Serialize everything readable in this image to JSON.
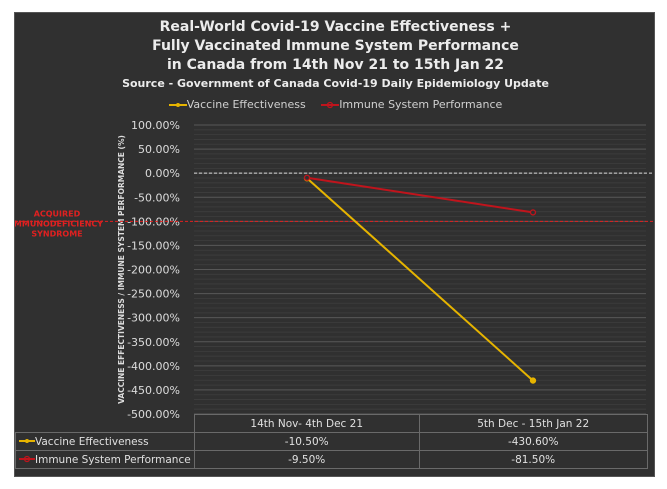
{
  "chart_data": {
    "type": "line",
    "title_lines": [
      "Real-World Covid-19 Vaccine Effectiveness +",
      "Fully Vaccinated Immune System Performance",
      "in Canada from 14th Nov 21 to 15th Jan 22"
    ],
    "subtitle": "Source - Government of Canada Covid-19 Daily Epidemiology Update",
    "ylabel": "VACCINE EFFECTIVENESS / IMMUNE SYSTEM PERFORMANCE (%)",
    "categories": [
      "14th Nov- 4th Dec 21",
      "5th Dec - 15th Jan 22"
    ],
    "ylim": [
      -500,
      100
    ],
    "yticks": [
      100,
      50,
      0,
      -50,
      -100,
      -150,
      -200,
      -250,
      -300,
      -350,
      -400,
      -450,
      -500
    ],
    "ytick_labels": [
      "100.00%",
      "50.00%",
      "0.00%",
      "-50.00%",
      "-100.00%",
      "-150.00%",
      "-200.00%",
      "-250.00%",
      "-300.00%",
      "-350.00%",
      "-400.00%",
      "-450.00%",
      "-500.00%"
    ],
    "series": [
      {
        "name": "Vaccine Effectiveness",
        "values": [
          -10.5,
          -430.6
        ],
        "labels": [
          "-10.50%",
          "-430.60%"
        ],
        "color": "#e6b400"
      },
      {
        "name": "Immune System Performance",
        "values": [
          -9.5,
          -81.5
        ],
        "labels": [
          "-9.50%",
          "-81.50%"
        ],
        "color": "#c0141c"
      }
    ],
    "reference_lines": [
      {
        "value": 0,
        "style": "dashed",
        "color": "#d8d8d8"
      },
      {
        "value": -100,
        "style": "dashed",
        "color": "#e02020",
        "annotation": [
          "ACQUIRED",
          "IMMUNODEFICIENCY",
          "SYNDROME"
        ]
      }
    ],
    "grid": true,
    "legend_position": "top",
    "data_table": true
  }
}
